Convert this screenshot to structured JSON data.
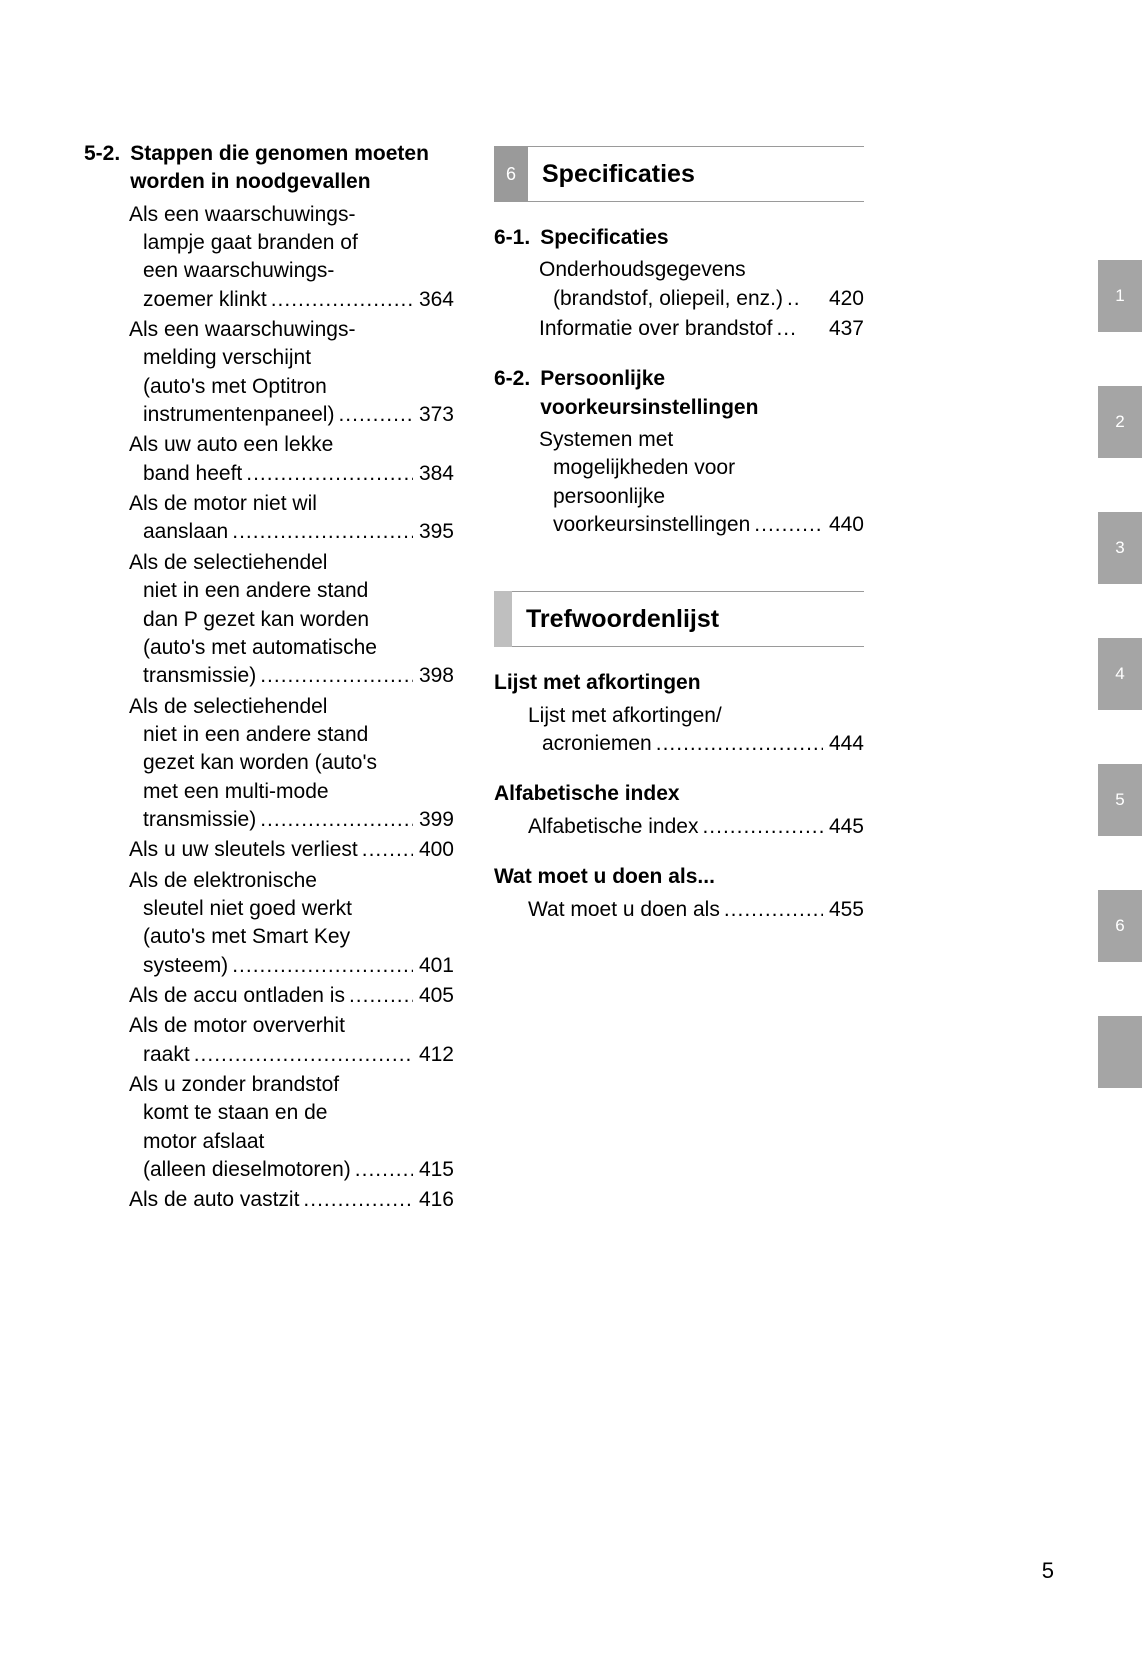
{
  "page_number": "5",
  "colors": {
    "text": "#000000",
    "band_bg": "#9a9a9a",
    "band_stub": "#bfbfbf",
    "tab_bg": "#a5a5a5",
    "tab_fg": "#ffffff",
    "rule": "#9a9a9a",
    "background": "#ffffff"
  },
  "fonts": {
    "body_size_pt": 21,
    "band_title_size_pt": 25,
    "tab_size_pt": 17,
    "pagenum_size_pt": 22,
    "family": "Arial"
  },
  "left_column": {
    "section_num": "5-2.",
    "section_title": "Stappen die genomen moeten worden in noodgevallen",
    "entries": [
      {
        "pre": "Als een waarschuwings-\nlampje gaat branden of\neen waarschuwings-",
        "last": "zoemer klinkt",
        "page": "364"
      },
      {
        "pre": "Als een waarschuwings-\nmelding verschijnt\n(auto's met Optitron",
        "last": "instrumentenpaneel)",
        "page": "373"
      },
      {
        "pre": "Als uw auto een lekke",
        "last": "band heeft",
        "page": "384"
      },
      {
        "pre": "Als de motor niet wil",
        "last": "aanslaan",
        "page": "395"
      },
      {
        "pre": "Als de selectiehendel\nniet in een andere stand\ndan P gezet kan worden\n(auto's met automatische",
        "last": "transmissie)",
        "page": "398"
      },
      {
        "pre": "Als de selectiehendel\nniet in een andere stand\ngezet kan worden (auto's\nmet een multi-mode",
        "last": "transmissie)",
        "page": "399"
      },
      {
        "pre": "",
        "last": "Als u uw sleutels verliest",
        "page": "400",
        "no_indent": true
      },
      {
        "pre": "Als de elektronische\nsleutel niet goed werkt\n(auto's met Smart Key",
        "last": "systeem)",
        "page": "401"
      },
      {
        "pre": "",
        "last": "Als de accu ontladen is",
        "page": "405",
        "no_indent": true
      },
      {
        "pre": "Als de motor oververhit",
        "last": "raakt",
        "page": "412"
      },
      {
        "pre": "Als u zonder brandstof\nkomt te staan en de\nmotor afslaat",
        "last": "(alleen dieselmotoren)",
        "page": "415"
      },
      {
        "pre": "",
        "last": "Als de auto vastzit",
        "page": "416",
        "no_indent": true
      }
    ]
  },
  "right_column": {
    "bands": [
      {
        "num": "6",
        "title": "Specificaties",
        "subsections": [
          {
            "num": "6-1.",
            "title": "Specificaties",
            "entries": [
              {
                "pre": "Onderhoudsgegevens",
                "last": "(brandstof, oliepeil, enz.)",
                "leader": "..",
                "page": "420"
              },
              {
                "pre": "",
                "last": "Informatie over brandstof",
                "leader": "...",
                "page": "437",
                "no_indent": true
              }
            ]
          },
          {
            "num": "6-2.",
            "title": "Persoonlijke voorkeursinstellingen",
            "entries": [
              {
                "pre": "Systemen met\nmogelijkheden voor\npersoonlijke",
                "last": "voorkeursinstellingen",
                "page": "440"
              }
            ]
          }
        ]
      },
      {
        "num": "",
        "title": "Trefwoordenlijst",
        "subsections": [
          {
            "num": "",
            "title": "Lijst met afkortingen",
            "entries": [
              {
                "pre": "Lijst met afkortingen/",
                "last": "acroniemen",
                "page": "444"
              }
            ]
          },
          {
            "num": "",
            "title": "Alfabetische index",
            "entries": [
              {
                "pre": "",
                "last": "Alfabetische index",
                "page": "445",
                "no_indent": true
              }
            ]
          },
          {
            "num": "",
            "title": "Wat moet u doen als...",
            "entries": [
              {
                "pre": "",
                "last": "Wat moet u doen als",
                "page": "455",
                "no_indent": true
              }
            ]
          }
        ]
      }
    ]
  },
  "tabs": [
    "1",
    "2",
    "3",
    "4",
    "5",
    "6",
    ""
  ]
}
